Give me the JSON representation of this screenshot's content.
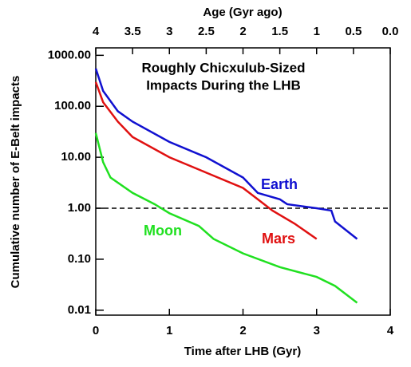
{
  "chart_data": {
    "type": "line",
    "title": [
      "Roughly Chicxulub-Sized",
      "Impacts During the LHB"
    ],
    "xlabel": "Time after LHB (Gyr)",
    "x2label": "Age (Gyr ago)",
    "ylabel": "Cumulative number of E-Belt impacts",
    "xlim": [
      0,
      4
    ],
    "xticks": [
      0,
      1,
      2,
      3,
      4
    ],
    "x2lim": [
      4,
      0
    ],
    "x2ticks": [
      4,
      3.5,
      3,
      2.5,
      2,
      1.5,
      1,
      0.5,
      {
        "value": 0,
        "label": "0.0"
      }
    ],
    "ylog": true,
    "ylim": [
      0.008,
      1400
    ],
    "yticks": [
      {
        "value": 0.01,
        "label": "0.01"
      },
      {
        "value": 0.1,
        "label": "0.10"
      },
      {
        "value": 1,
        "label": "1.00"
      },
      {
        "value": 10,
        "label": "10.00"
      },
      {
        "value": 100,
        "label": "100.00"
      },
      {
        "value": 1000,
        "label": "1000.00"
      }
    ],
    "hline": 1,
    "series": [
      {
        "name": "Earth",
        "color": "#1010d0",
        "x": [
          0,
          0.1,
          0.3,
          0.5,
          1.0,
          1.5,
          2.0,
          2.2,
          2.5,
          2.6,
          3.0,
          3.2,
          3.25,
          3.55
        ],
        "values": [
          550,
          200,
          80,
          50,
          20,
          10,
          4,
          2,
          1.5,
          1.2,
          1.0,
          0.9,
          0.55,
          0.25
        ]
      },
      {
        "name": "Mars",
        "color": "#e01010",
        "x": [
          0,
          0.1,
          0.3,
          0.5,
          1.0,
          1.5,
          2.0,
          2.2,
          2.4,
          2.7,
          3.0
        ],
        "values": [
          300,
          120,
          50,
          25,
          10,
          5,
          2.5,
          1.5,
          0.9,
          0.5,
          0.25
        ]
      },
      {
        "name": "Moon",
        "color": "#20e020",
        "x": [
          0,
          0.1,
          0.2,
          0.5,
          0.8,
          1.0,
          1.4,
          1.6,
          2.0,
          2.5,
          3.0,
          3.25,
          3.55
        ],
        "values": [
          30,
          8,
          4,
          2,
          1.2,
          0.8,
          0.45,
          0.25,
          0.13,
          0.07,
          0.045,
          0.03,
          0.014
        ]
      }
    ]
  }
}
